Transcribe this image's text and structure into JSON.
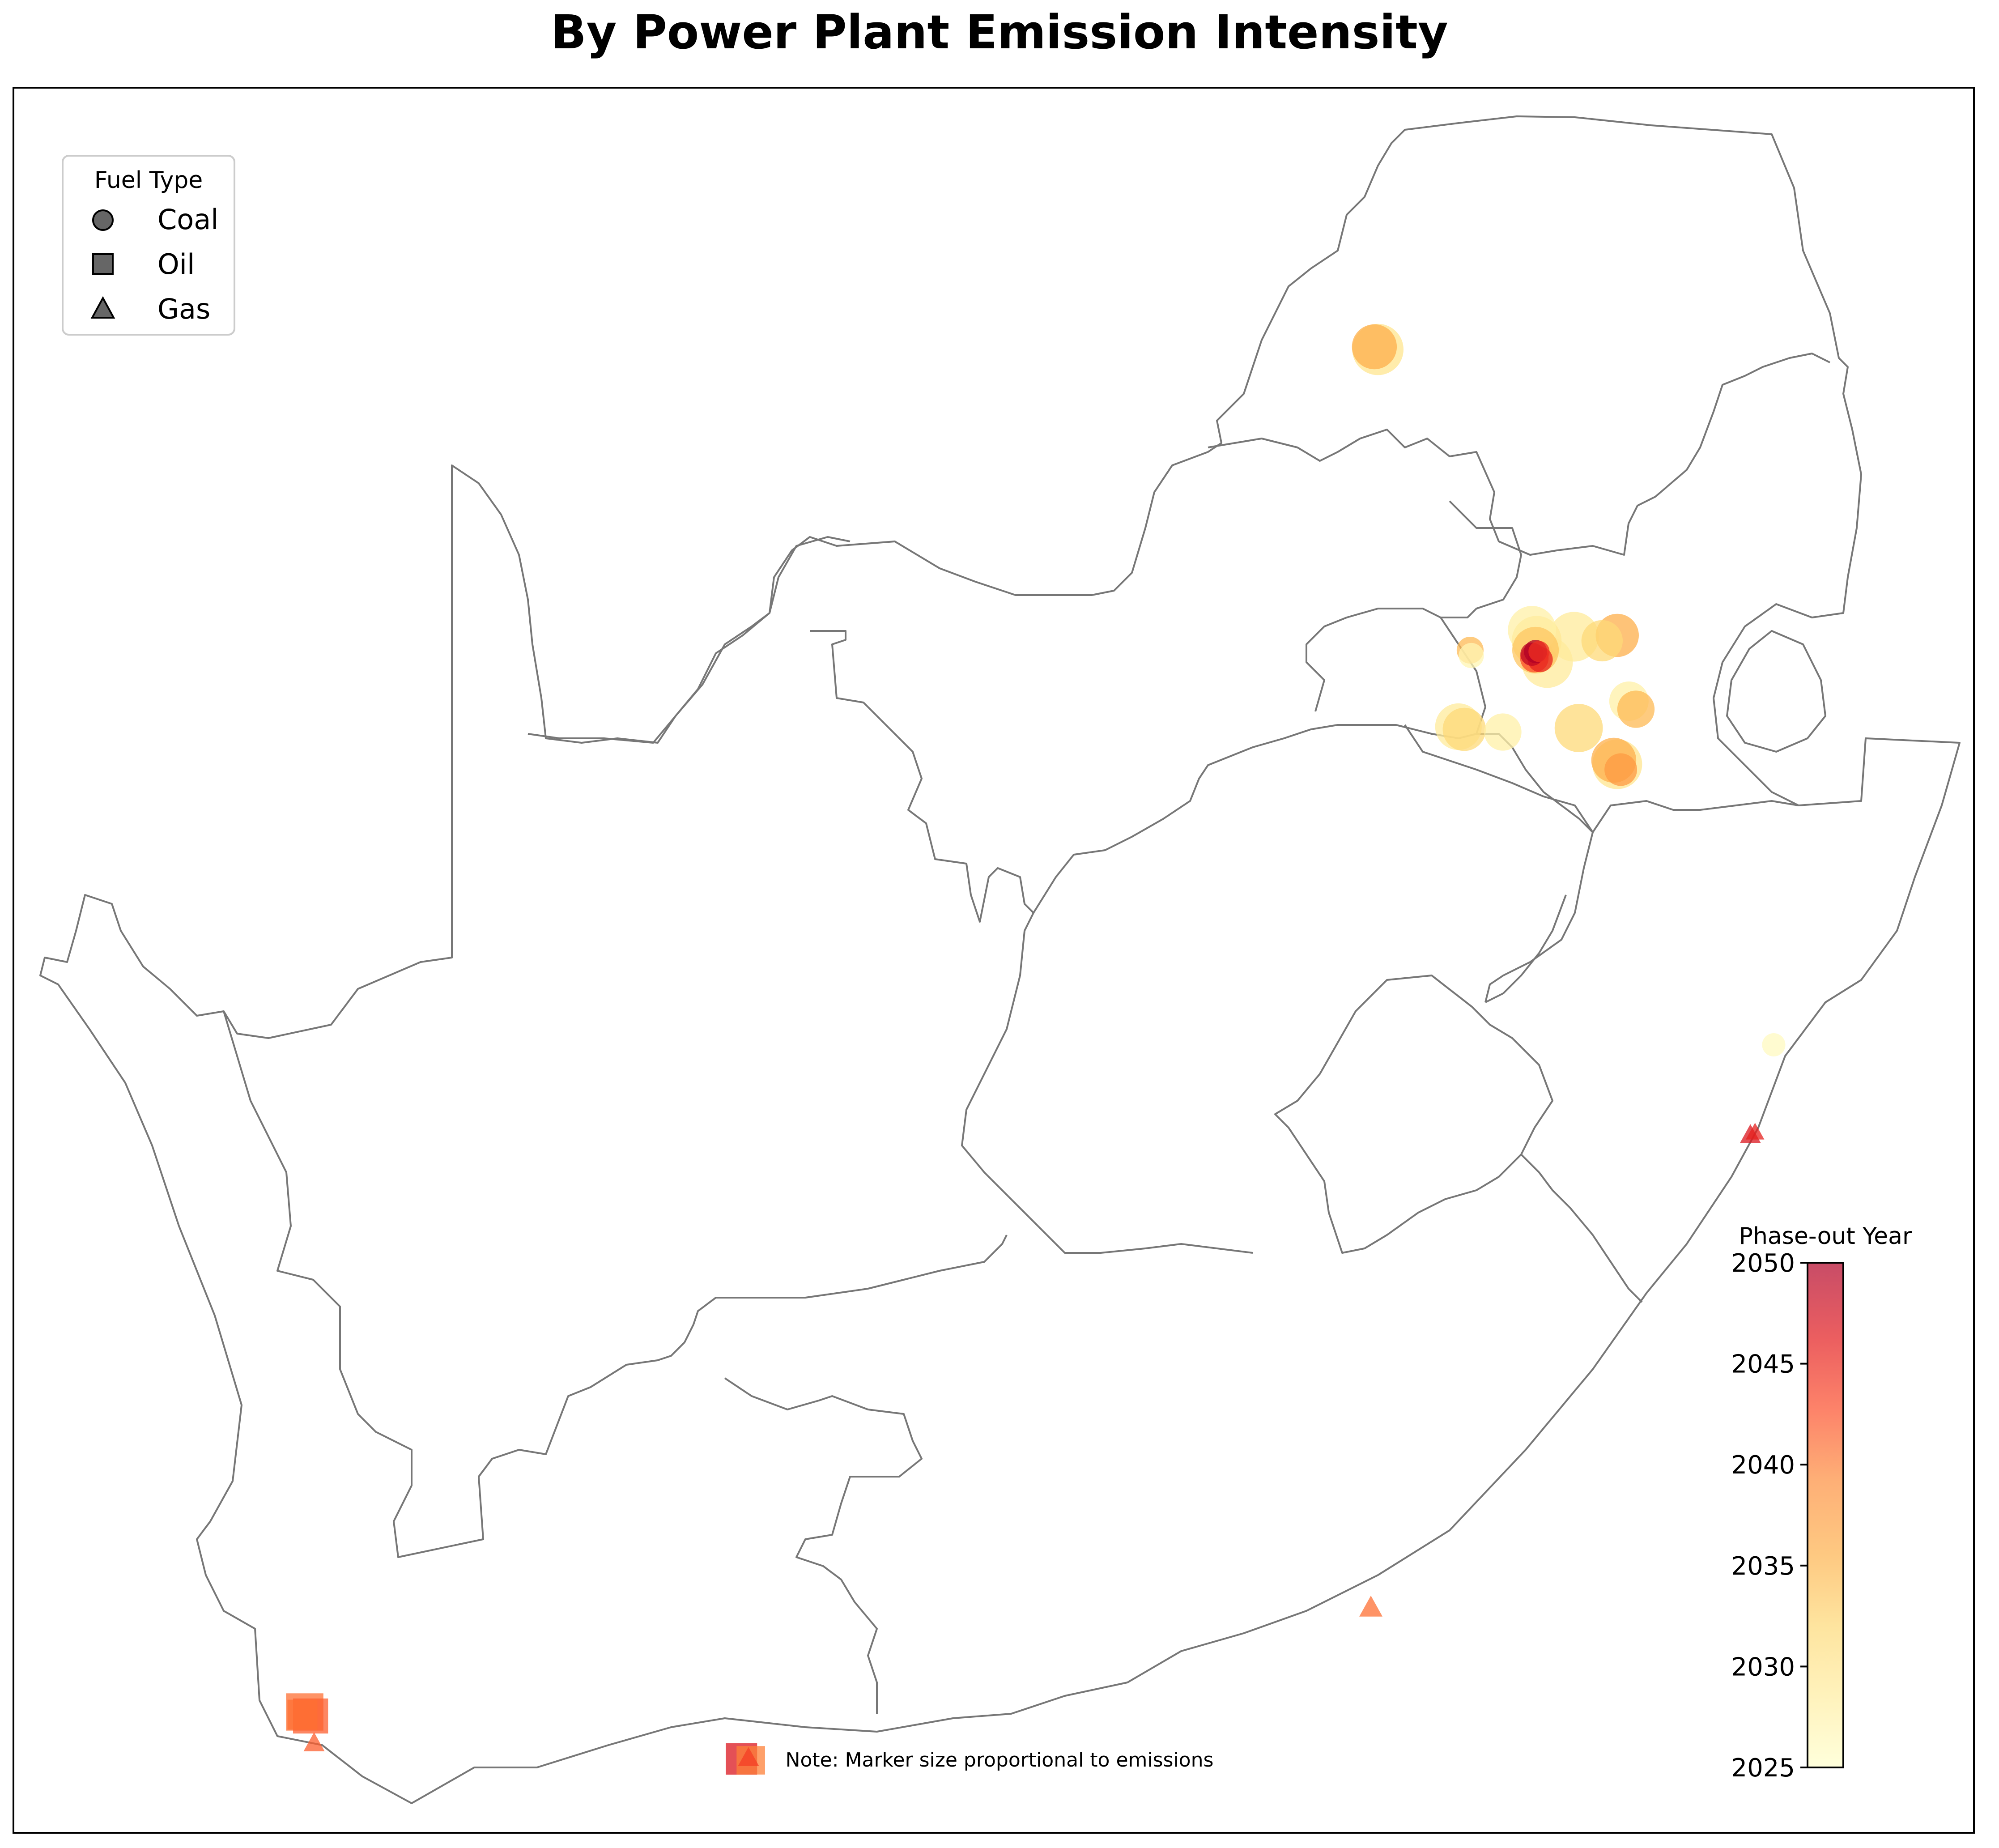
{
  "title": "By Power Plant Emission Intensity",
  "note": "Note: Marker size proportional to emissions",
  "legend": {
    "title": "Fuel Type",
    "items": [
      {
        "label": "Coal",
        "shape": "circle"
      },
      {
        "label": "Oil",
        "shape": "square"
      },
      {
        "label": "Gas",
        "shape": "triangle"
      }
    ]
  },
  "colorbar": {
    "title": "Phase-out Year",
    "min": 2025,
    "max": 2050,
    "ticks": [
      "2025",
      "2030",
      "2035",
      "2040",
      "2045",
      "2050"
    ],
    "colormap": [
      "#ffffcc",
      "#ffeda0",
      "#fed976",
      "#feb24c",
      "#fd8d3c",
      "#fc4e2a",
      "#e31a1c",
      "#b10026"
    ]
  },
  "colors": {
    "border": "#777777",
    "frame": "#000000"
  },
  "chart_data": {
    "type": "scatter",
    "plants": [
      {
        "fuel": "coal",
        "lon": 27.61,
        "lat": -23.67,
        "phase_out": 2030,
        "emissions": 30
      },
      {
        "fuel": "coal",
        "lon": 27.58,
        "lat": -23.65,
        "phase_out": 2036,
        "emissions": 22
      },
      {
        "fuel": "coal",
        "lon": 28.93,
        "lat": -25.76,
        "phase_out": 2028,
        "emissions": 26
      },
      {
        "fuel": "coal",
        "lon": 28.97,
        "lat": -25.84,
        "phase_out": 2031,
        "emissions": 28
      },
      {
        "fuel": "coal",
        "lon": 28.96,
        "lat": -25.91,
        "phase_out": 2034,
        "emissions": 24
      },
      {
        "fuel": "coal",
        "lon": 29.06,
        "lat": -26.0,
        "phase_out": 2029,
        "emissions": 30
      },
      {
        "fuel": "coal",
        "lon": 29.29,
        "lat": -25.81,
        "phase_out": 2029,
        "emissions": 28
      },
      {
        "fuel": "coal",
        "lon": 29.53,
        "lat": -25.84,
        "phase_out": 2032,
        "emissions": 18
      },
      {
        "fuel": "coal",
        "lon": 29.66,
        "lat": -25.8,
        "phase_out": 2036,
        "emissions": 20
      },
      {
        "fuel": "coal",
        "lon": 28.4,
        "lat": -25.91,
        "phase_out": 2035,
        "emissions": 6
      },
      {
        "fuel": "coal",
        "lon": 28.41,
        "lat": -25.95,
        "phase_out": 2027,
        "emissions": 5
      },
      {
        "fuel": "coal",
        "lon": 29.76,
        "lat": -26.29,
        "phase_out": 2028,
        "emissions": 16
      },
      {
        "fuel": "coal",
        "lon": 29.82,
        "lat": -26.35,
        "phase_out": 2035,
        "emissions": 14
      },
      {
        "fuel": "coal",
        "lon": 29.33,
        "lat": -26.49,
        "phase_out": 2032,
        "emissions": 26
      },
      {
        "fuel": "coal",
        "lon": 28.3,
        "lat": -26.48,
        "phase_out": 2029,
        "emissions": 24
      },
      {
        "fuel": "coal",
        "lon": 28.35,
        "lat": -26.5,
        "phase_out": 2032,
        "emissions": 20
      },
      {
        "fuel": "coal",
        "lon": 28.68,
        "lat": -26.52,
        "phase_out": 2028,
        "emissions": 14
      },
      {
        "fuel": "coal",
        "lon": 29.66,
        "lat": -26.76,
        "phase_out": 2030,
        "emissions": 28
      },
      {
        "fuel": "coal",
        "lon": 29.63,
        "lat": -26.73,
        "phase_out": 2036,
        "emissions": 22
      },
      {
        "fuel": "coal",
        "lon": 29.69,
        "lat": -26.8,
        "phase_out": 2038,
        "emissions": 10
      },
      {
        "fuel": "coal",
        "lon": 28.95,
        "lat": -25.97,
        "phase_out": 2043,
        "emissions": 7
      },
      {
        "fuel": "coal",
        "lon": 29.0,
        "lat": -25.98,
        "phase_out": 2046,
        "emissions": 5
      },
      {
        "fuel": "coal",
        "lon": 28.93,
        "lat": -25.94,
        "phase_out": 2049,
        "emissions": 4
      },
      {
        "fuel": "coal",
        "lon": 28.96,
        "lat": -25.92,
        "phase_out": 2050,
        "emissions": 4
      },
      {
        "fuel": "coal",
        "lon": 28.99,
        "lat": -25.92,
        "phase_out": 2045,
        "emissions": 3
      },
      {
        "fuel": "coal",
        "lon": 31.0,
        "lat": -28.85,
        "phase_out": 2026,
        "emissions": 4
      },
      {
        "fuel": "oil",
        "lon": 18.42,
        "lat": -33.82,
        "phase_out": 2041,
        "emissions": 14
      },
      {
        "fuel": "oil",
        "lon": 18.47,
        "lat": -33.85,
        "phase_out": 2042,
        "emissions": 12
      },
      {
        "fuel": "oil",
        "lon": 18.4,
        "lat": -33.84,
        "phase_out": 2041,
        "emissions": 8
      },
      {
        "fuel": "oil",
        "lon": 22.16,
        "lat": -34.17,
        "phase_out": 2047,
        "emissions": 9
      },
      {
        "fuel": "oil",
        "lon": 22.24,
        "lat": -34.18,
        "phase_out": 2040,
        "emissions": 7
      },
      {
        "fuel": "gas",
        "lon": 18.5,
        "lat": -34.05,
        "phase_out": 2042,
        "emissions": 3
      },
      {
        "fuel": "gas",
        "lon": 22.22,
        "lat": -34.16,
        "phase_out": 2044,
        "emissions": 3
      },
      {
        "fuel": "gas",
        "lon": 27.55,
        "lat": -33.04,
        "phase_out": 2041,
        "emissions": 4
      },
      {
        "fuel": "gas",
        "lon": 30.8,
        "lat": -29.52,
        "phase_out": 2047,
        "emissions": 3
      },
      {
        "fuel": "gas",
        "lon": 30.84,
        "lat": -29.5,
        "phase_out": 2046,
        "emissions": 2
      }
    ]
  }
}
